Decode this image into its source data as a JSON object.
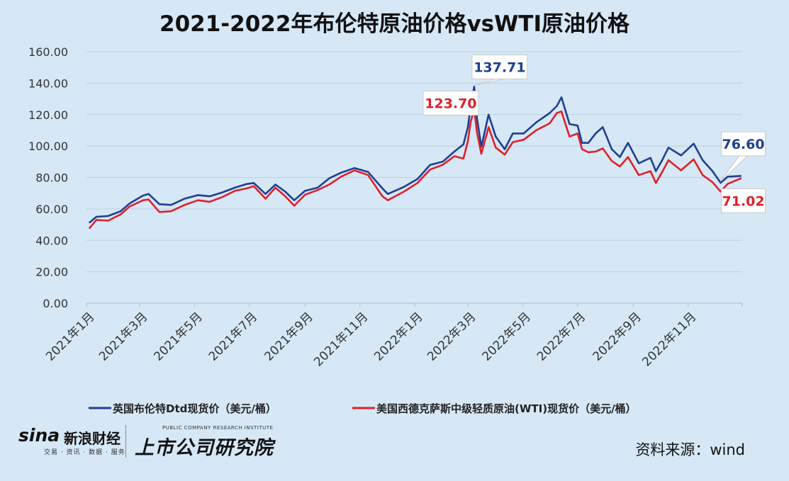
{
  "brand": {
    "sina_logo": "sina",
    "sina_finance": "新浪财经",
    "sina_sub": "交易 · 资讯 · 数据 · 服务",
    "institute_en": "PUBLIC COMPANY RESEARCH INSTITUTE",
    "institute_cn": "上市公司研究院"
  },
  "source": "资料来源：wind",
  "chart_data": {
    "type": "line",
    "title": "2021-2022年布伦特原油价格vsWTI原油价格",
    "ylim": [
      0,
      160
    ],
    "yticks": [
      "0.00",
      "20.00",
      "40.00",
      "60.00",
      "80.00",
      "100.00",
      "120.00",
      "140.00",
      "160.00"
    ],
    "xlim": [
      "2021-01-01",
      "2022-12-31"
    ],
    "xticks": [
      {
        "date": "2021-01-01",
        "label": "2021年1月"
      },
      {
        "date": "2021-03-01",
        "label": "2021年3月"
      },
      {
        "date": "2021-05-01",
        "label": "2021年5月"
      },
      {
        "date": "2021-07-01",
        "label": "2021年7月"
      },
      {
        "date": "2021-09-01",
        "label": "2021年9月"
      },
      {
        "date": "2021-11-01",
        "label": "2021年11月"
      },
      {
        "date": "2022-01-01",
        "label": "2022年1月"
      },
      {
        "date": "2022-03-01",
        "label": "2022年3月"
      },
      {
        "date": "2022-05-01",
        "label": "2022年5月"
      },
      {
        "date": "2022-07-01",
        "label": "2022年7月"
      },
      {
        "date": "2022-09-01",
        "label": "2022年9月"
      },
      {
        "date": "2022-11-01",
        "label": "2022年11月"
      }
    ],
    "grid": true,
    "legend": "bottom",
    "series": [
      {
        "name": "英国布伦特Dtd现货价（美元/桶）",
        "color": "#1f3f8f",
        "points": [
          [
            "2021-01-04",
            51.1
          ],
          [
            "2021-01-12",
            55.0
          ],
          [
            "2021-01-25",
            55.5
          ],
          [
            "2021-02-08",
            58.5
          ],
          [
            "2021-02-18",
            63.5
          ],
          [
            "2021-03-05",
            68.5
          ],
          [
            "2021-03-11",
            69.5
          ],
          [
            "2021-03-23",
            63.0
          ],
          [
            "2021-04-05",
            62.5
          ],
          [
            "2021-04-20",
            66.5
          ],
          [
            "2021-05-05",
            68.8
          ],
          [
            "2021-05-18",
            68.0
          ],
          [
            "2021-06-01",
            70.5
          ],
          [
            "2021-06-15",
            73.5
          ],
          [
            "2021-06-28",
            75.8
          ],
          [
            "2021-07-06",
            76.5
          ],
          [
            "2021-07-19",
            69.5
          ],
          [
            "2021-07-30",
            75.5
          ],
          [
            "2021-08-10",
            71.0
          ],
          [
            "2021-08-20",
            65.5
          ],
          [
            "2021-09-01",
            71.5
          ],
          [
            "2021-09-15",
            73.5
          ],
          [
            "2021-09-28",
            79.5
          ],
          [
            "2021-10-11",
            83.0
          ],
          [
            "2021-10-26",
            86.0
          ],
          [
            "2021-11-10",
            83.5
          ],
          [
            "2021-11-26",
            73.0
          ],
          [
            "2021-12-02",
            69.5
          ],
          [
            "2021-12-20",
            74.0
          ],
          [
            "2022-01-04",
            79.0
          ],
          [
            "2022-01-18",
            88.0
          ],
          [
            "2022-02-01",
            90.0
          ],
          [
            "2022-02-14",
            96.5
          ],
          [
            "2022-02-24",
            101.0
          ],
          [
            "2022-03-01",
            112.0
          ],
          [
            "2022-03-04",
            125.0
          ],
          [
            "2022-03-08",
            137.71
          ],
          [
            "2022-03-11",
            118.0
          ],
          [
            "2022-03-16",
            99.5
          ],
          [
            "2022-03-24",
            120.0
          ],
          [
            "2022-04-01",
            106.0
          ],
          [
            "2022-04-11",
            98.0
          ],
          [
            "2022-04-20",
            108.0
          ],
          [
            "2022-05-02",
            108.0
          ],
          [
            "2022-05-16",
            115.0
          ],
          [
            "2022-05-31",
            121.0
          ],
          [
            "2022-06-08",
            125.5
          ],
          [
            "2022-06-13",
            131.0
          ],
          [
            "2022-06-22",
            114.0
          ],
          [
            "2022-07-01",
            113.0
          ],
          [
            "2022-07-06",
            102.0
          ],
          [
            "2022-07-13",
            102.0
          ],
          [
            "2022-07-21",
            108.0
          ],
          [
            "2022-07-29",
            112.0
          ],
          [
            "2022-08-08",
            98.0
          ],
          [
            "2022-08-17",
            93.0
          ],
          [
            "2022-08-26",
            102.0
          ],
          [
            "2022-09-07",
            89.0
          ],
          [
            "2022-09-20",
            92.5
          ],
          [
            "2022-09-26",
            84.0
          ],
          [
            "2022-10-03",
            91.0
          ],
          [
            "2022-10-10",
            99.0
          ],
          [
            "2022-10-24",
            94.0
          ],
          [
            "2022-11-07",
            101.5
          ],
          [
            "2022-11-17",
            91.0
          ],
          [
            "2022-11-28",
            84.0
          ],
          [
            "2022-12-07",
            76.6
          ],
          [
            "2022-12-15",
            80.5
          ],
          [
            "2022-12-30",
            81.0
          ]
        ]
      },
      {
        "name": "美国西德克萨斯中级轻质原油(WTI)现货价（美元/桶）",
        "color": "#e0202a",
        "points": [
          [
            "2021-01-04",
            47.5
          ],
          [
            "2021-01-12",
            53.0
          ],
          [
            "2021-01-25",
            52.5
          ],
          [
            "2021-02-08",
            56.5
          ],
          [
            "2021-02-18",
            61.5
          ],
          [
            "2021-03-05",
            65.5
          ],
          [
            "2021-03-11",
            66.0
          ],
          [
            "2021-03-23",
            58.0
          ],
          [
            "2021-04-05",
            58.5
          ],
          [
            "2021-04-20",
            62.5
          ],
          [
            "2021-05-05",
            65.5
          ],
          [
            "2021-05-18",
            64.5
          ],
          [
            "2021-06-01",
            67.5
          ],
          [
            "2021-06-15",
            71.5
          ],
          [
            "2021-06-28",
            73.0
          ],
          [
            "2021-07-06",
            74.5
          ],
          [
            "2021-07-19",
            66.5
          ],
          [
            "2021-07-30",
            73.5
          ],
          [
            "2021-08-10",
            68.0
          ],
          [
            "2021-08-20",
            62.0
          ],
          [
            "2021-09-01",
            69.0
          ],
          [
            "2021-09-15",
            72.0
          ],
          [
            "2021-09-28",
            75.5
          ],
          [
            "2021-10-11",
            80.5
          ],
          [
            "2021-10-26",
            84.5
          ],
          [
            "2021-11-10",
            81.5
          ],
          [
            "2021-11-26",
            68.0
          ],
          [
            "2021-12-02",
            65.5
          ],
          [
            "2021-12-20",
            71.0
          ],
          [
            "2022-01-04",
            76.5
          ],
          [
            "2022-01-18",
            85.0
          ],
          [
            "2022-02-01",
            88.0
          ],
          [
            "2022-02-14",
            93.5
          ],
          [
            "2022-02-24",
            92.0
          ],
          [
            "2022-03-01",
            103.0
          ],
          [
            "2022-03-04",
            115.0
          ],
          [
            "2022-03-08",
            123.7
          ],
          [
            "2022-03-11",
            109.0
          ],
          [
            "2022-03-16",
            95.0
          ],
          [
            "2022-03-24",
            112.0
          ],
          [
            "2022-04-01",
            99.0
          ],
          [
            "2022-04-11",
            94.5
          ],
          [
            "2022-04-20",
            102.5
          ],
          [
            "2022-05-02",
            104.0
          ],
          [
            "2022-05-16",
            110.0
          ],
          [
            "2022-05-31",
            114.5
          ],
          [
            "2022-06-08",
            121.0
          ],
          [
            "2022-06-13",
            122.0
          ],
          [
            "2022-06-22",
            106.0
          ],
          [
            "2022-07-01",
            108.0
          ],
          [
            "2022-07-06",
            98.0
          ],
          [
            "2022-07-13",
            96.0
          ],
          [
            "2022-07-21",
            96.5
          ],
          [
            "2022-07-29",
            98.5
          ],
          [
            "2022-08-08",
            90.5
          ],
          [
            "2022-08-17",
            87.0
          ],
          [
            "2022-08-26",
            93.0
          ],
          [
            "2022-09-07",
            81.5
          ],
          [
            "2022-09-20",
            84.0
          ],
          [
            "2022-09-26",
            76.5
          ],
          [
            "2022-10-03",
            83.5
          ],
          [
            "2022-10-10",
            91.0
          ],
          [
            "2022-10-24",
            84.5
          ],
          [
            "2022-11-07",
            91.5
          ],
          [
            "2022-11-17",
            81.5
          ],
          [
            "2022-11-28",
            77.0
          ],
          [
            "2022-12-07",
            71.02
          ],
          [
            "2022-12-15",
            76.0
          ],
          [
            "2022-12-30",
            79.5
          ]
        ]
      }
    ],
    "annotations": [
      {
        "series": 0,
        "date": "2022-03-08",
        "value": 137.71,
        "label": "137.71",
        "color": "#1f3f8f"
      },
      {
        "series": 1,
        "date": "2022-03-08",
        "value": 123.7,
        "label": "123.70",
        "color": "#e0202a"
      },
      {
        "series": 0,
        "date": "2022-12-07",
        "value": 76.6,
        "label": "76.60",
        "color": "#1f3f8f"
      },
      {
        "series": 1,
        "date": "2022-12-07",
        "value": 71.02,
        "label": "71.02",
        "color": "#e0202a"
      }
    ]
  }
}
